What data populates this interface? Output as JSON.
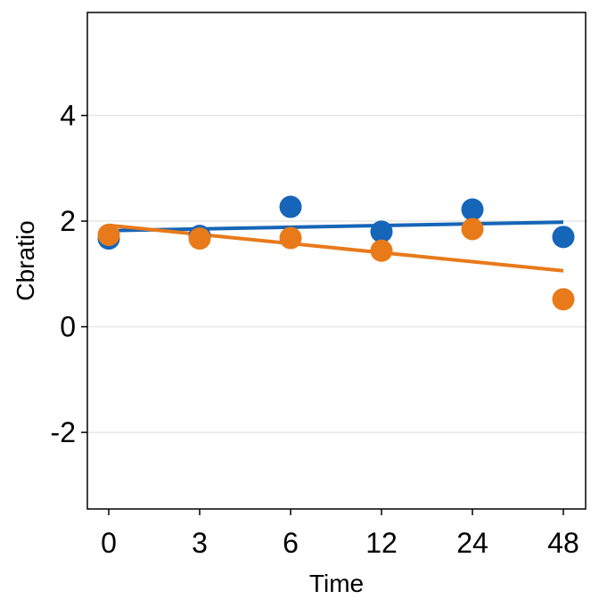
{
  "chart_data": {
    "type": "scatter",
    "title": "",
    "xlabel": "Time",
    "ylabel": "Cbratio",
    "categories": [
      "0",
      "3",
      "6",
      "12",
      "24",
      "48"
    ],
    "ylim": [
      -3.45,
      5.95
    ],
    "yticks": [
      -2,
      0,
      2,
      4
    ],
    "grid": "horizontal major lines",
    "legend": "none",
    "series": [
      {
        "color": "#1565b8",
        "values": [
          1.67,
          1.72,
          2.27,
          1.8,
          2.22,
          1.7
        ],
        "trend": [
          1.82,
          1.98
        ]
      },
      {
        "color": "#e87a1a",
        "values": [
          1.74,
          1.67,
          1.68,
          1.44,
          1.85,
          0.52
        ],
        "trend": [
          1.92,
          1.06
        ]
      }
    ]
  }
}
